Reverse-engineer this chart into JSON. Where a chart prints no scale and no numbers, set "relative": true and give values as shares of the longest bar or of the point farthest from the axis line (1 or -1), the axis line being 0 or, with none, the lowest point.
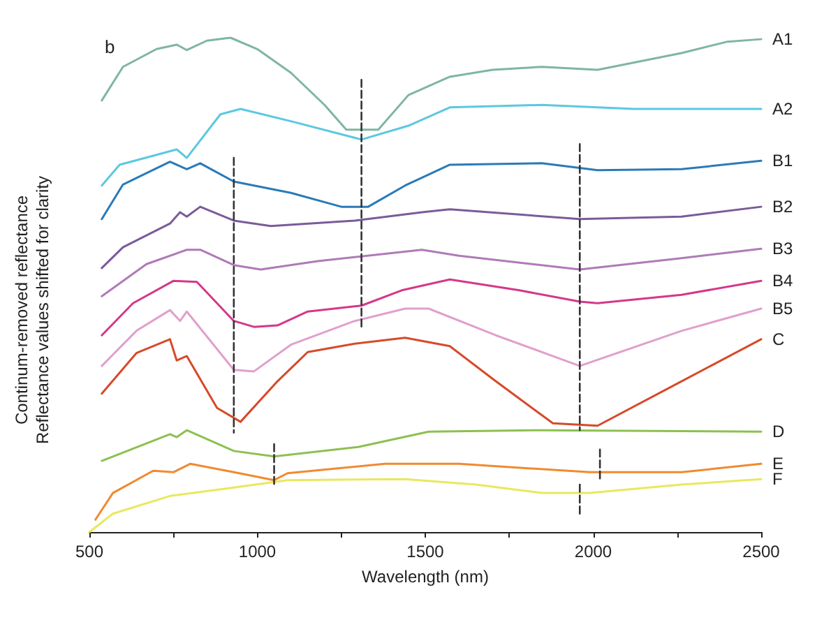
{
  "chart_data": {
    "type": "line",
    "title": "b",
    "xlabel": "Wavelength (nm)",
    "ylabel": "Continum-removed reflectance\nReflectance values shifted for clarity",
    "relative": true,
    "grid": false,
    "legend": false,
    "marker": "none",
    "line_style": "solid",
    "xlim": [
      500,
      2500
    ],
    "xticks": [
      500,
      {
        "value": 750,
        "label": null
      },
      1000,
      {
        "value": 1250,
        "label": null
      },
      1500,
      {
        "value": 1750,
        "label": null
      },
      2000,
      {
        "value": 2250,
        "label": null
      },
      2500
    ],
    "series": [
      {
        "name": "A1",
        "color": "#7fb5a5",
        "x": [
          537,
          600,
          700,
          760,
          790,
          850,
          920,
          1000,
          1100,
          1200,
          1265,
          1360,
          1450,
          1573,
          1700,
          1847,
          2013,
          2263,
          2400,
          2500
        ],
        "values": [
          0.873,
          0.941,
          0.977,
          0.986,
          0.975,
          0.994,
          1.0,
          0.977,
          0.929,
          0.864,
          0.814,
          0.814,
          0.884,
          0.921,
          0.935,
          0.941,
          0.935,
          0.969,
          0.992,
          0.997
        ]
      },
      {
        "name": "A2",
        "color": "#5bc8e0",
        "x": [
          537,
          590,
          760,
          790,
          890,
          950,
          1100,
          1310,
          1450,
          1573,
          1847,
          2120,
          2500
        ],
        "values": [
          0.701,
          0.743,
          0.774,
          0.757,
          0.845,
          0.856,
          0.831,
          0.794,
          0.822,
          0.859,
          0.864,
          0.856,
          0.856
        ]
      },
      {
        "name": "B1",
        "color": "#2a7ab8",
        "x": [
          537,
          600,
          740,
          790,
          830,
          930,
          1100,
          1250,
          1330,
          1440,
          1573,
          1847,
          2013,
          2263,
          2500
        ],
        "values": [
          0.633,
          0.703,
          0.749,
          0.734,
          0.746,
          0.709,
          0.686,
          0.658,
          0.658,
          0.701,
          0.743,
          0.746,
          0.732,
          0.734,
          0.751
        ]
      },
      {
        "name": "B2",
        "color": "#7a5b9a",
        "x": [
          537,
          600,
          740,
          770,
          790,
          830,
          930,
          1040,
          1290,
          1490,
          1573,
          1960,
          2263,
          2500
        ],
        "values": [
          0.534,
          0.576,
          0.624,
          0.647,
          0.638,
          0.658,
          0.63,
          0.619,
          0.63,
          0.647,
          0.653,
          0.633,
          0.638,
          0.658
        ]
      },
      {
        "name": "B3",
        "color": "#b07ab8",
        "x": [
          537,
          670,
          790,
          830,
          930,
          1010,
          1180,
          1490,
          1600,
          1960,
          2263,
          2500
        ],
        "values": [
          0.477,
          0.542,
          0.571,
          0.571,
          0.54,
          0.531,
          0.548,
          0.571,
          0.559,
          0.531,
          0.554,
          0.573
        ]
      },
      {
        "name": "B4",
        "color": "#d4388a",
        "x": [
          537,
          630,
          750,
          820,
          930,
          990,
          1060,
          1150,
          1310,
          1430,
          1573,
          1780,
          1960,
          2013,
          2263,
          2500
        ],
        "values": [
          0.398,
          0.463,
          0.508,
          0.506,
          0.427,
          0.415,
          0.418,
          0.446,
          0.458,
          0.489,
          0.511,
          0.489,
          0.466,
          0.463,
          0.48,
          0.508
        ]
      },
      {
        "name": "B5",
        "color": "#e0a0cc",
        "x": [
          537,
          640,
          740,
          770,
          790,
          930,
          990,
          1100,
          1290,
          1440,
          1510,
          1710,
          1960,
          2263,
          2500
        ],
        "values": [
          0.336,
          0.407,
          0.449,
          0.427,
          0.446,
          0.328,
          0.325,
          0.379,
          0.427,
          0.452,
          0.452,
          0.398,
          0.336,
          0.407,
          0.452
        ]
      },
      {
        "name": "C",
        "color": "#d64a2a",
        "x": [
          537,
          640,
          740,
          760,
          790,
          880,
          950,
          1060,
          1150,
          1290,
          1440,
          1573,
          1710,
          1880,
          2013,
          2263,
          2500
        ],
        "values": [
          0.28,
          0.362,
          0.39,
          0.347,
          0.356,
          0.251,
          0.223,
          0.305,
          0.364,
          0.381,
          0.393,
          0.376,
          0.305,
          0.22,
          0.215,
          0.305,
          0.39
        ]
      },
      {
        "name": "D",
        "color": "#8cc050",
        "x": [
          537,
          740,
          760,
          790,
          930,
          1050,
          1300,
          1510,
          1847,
          2500
        ],
        "values": [
          0.144,
          0.198,
          0.192,
          0.206,
          0.164,
          0.153,
          0.172,
          0.203,
          0.206,
          0.203
        ]
      },
      {
        "name": "E",
        "color": "#f08a30",
        "x": [
          518,
          570,
          690,
          750,
          800,
          930,
          1050,
          1090,
          1380,
          1600,
          1990,
          2263,
          2500
        ],
        "values": [
          0.025,
          0.079,
          0.124,
          0.121,
          0.138,
          0.121,
          0.105,
          0.119,
          0.138,
          0.138,
          0.121,
          0.121,
          0.138
        ]
      },
      {
        "name": "F",
        "color": "#e8e860",
        "x": [
          500,
          570,
          740,
          930,
          1090,
          1440,
          1650,
          1847,
          1990,
          2263,
          2500
        ],
        "values": [
          0.0,
          0.037,
          0.073,
          0.09,
          0.105,
          0.107,
          0.096,
          0.079,
          0.079,
          0.096,
          0.107
        ]
      },
      {
        "color": "#333333",
        "line_style": "dashed",
        "x": [
          1310,
          1310
        ],
        "values": [
          0.915,
          0.412
        ]
      },
      {
        "color": "#333333",
        "line_style": "dashed",
        "x": [
          930,
          930
        ],
        "values": [
          0.757,
          0.201
        ]
      },
      {
        "color": "#333333",
        "line_style": "dashed",
        "x": [
          1960,
          1960
        ],
        "values": [
          0.785,
          0.206
        ]
      },
      {
        "color": "#333333",
        "line_style": "dashed",
        "x": [
          1050,
          1050
        ],
        "values": [
          0.178,
          0.096
        ]
      },
      {
        "color": "#333333",
        "line_style": "dashed",
        "x": [
          2020,
          2020
        ],
        "values": [
          0.167,
          0.107
        ]
      },
      {
        "color": "#333333",
        "line_style": "dashed",
        "x": [
          1960,
          1960
        ],
        "values": [
          0.096,
          0.037
        ]
      }
    ]
  }
}
